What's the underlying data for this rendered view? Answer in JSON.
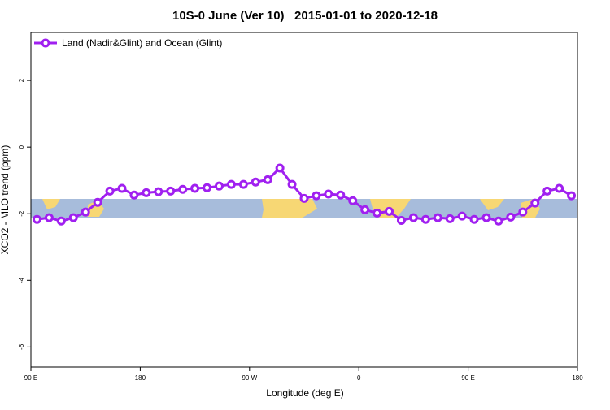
{
  "chart_data": {
    "type": "line",
    "title": "10S-0 June (Ver 10)   2015-01-01 to 2020-12-18",
    "x_label": "Longitude (deg E)",
    "y_label": "XCO2 - MLO trend (ppm)",
    "xlim": [
      90,
      540
    ],
    "xticks": [
      {
        "value": 90,
        "label": "90 E"
      },
      180,
      {
        "value": 270,
        "label": "90 W"
      },
      {
        "value": 360,
        "label": "0"
      },
      {
        "value": 450,
        "label": "90 E"
      },
      {
        "value": 540,
        "label": "180"
      }
    ],
    "ylim": [
      -6.6,
      3.44
    ],
    "yticks": [
      2,
      0,
      -2,
      -4,
      -6
    ],
    "legend": "top-left",
    "series": [
      {
        "name": "Land (Nadir&Glint) and Ocean (Glint)",
        "color": "#a020f0",
        "x": [
          95,
          105,
          115,
          125,
          135,
          145,
          155,
          165,
          175,
          185,
          195,
          205,
          215,
          225,
          235,
          245,
          255,
          265,
          275,
          285,
          295,
          305,
          315,
          325,
          335,
          345,
          355,
          365,
          375,
          385,
          395,
          405,
          415,
          425,
          435,
          445,
          455,
          465,
          475,
          485,
          495,
          505,
          515,
          525,
          535
        ],
        "values": [
          -2.17,
          -2.12,
          -2.22,
          -2.12,
          -1.95,
          -1.66,
          -1.32,
          -1.24,
          -1.44,
          -1.37,
          -1.34,
          -1.32,
          -1.27,
          -1.24,
          -1.22,
          -1.17,
          -1.12,
          -1.12,
          -1.05,
          -0.98,
          -0.63,
          -1.12,
          -1.54,
          -1.46,
          -1.41,
          -1.44,
          -1.61,
          -1.88,
          -1.98,
          -1.93,
          -2.2,
          -2.12,
          -2.17,
          -2.12,
          -2.15,
          -2.07,
          -2.17,
          -2.12,
          -2.22,
          -2.1,
          -1.95,
          -1.68,
          -1.32,
          -1.24,
          -1.46
        ]
      }
    ]
  }
}
